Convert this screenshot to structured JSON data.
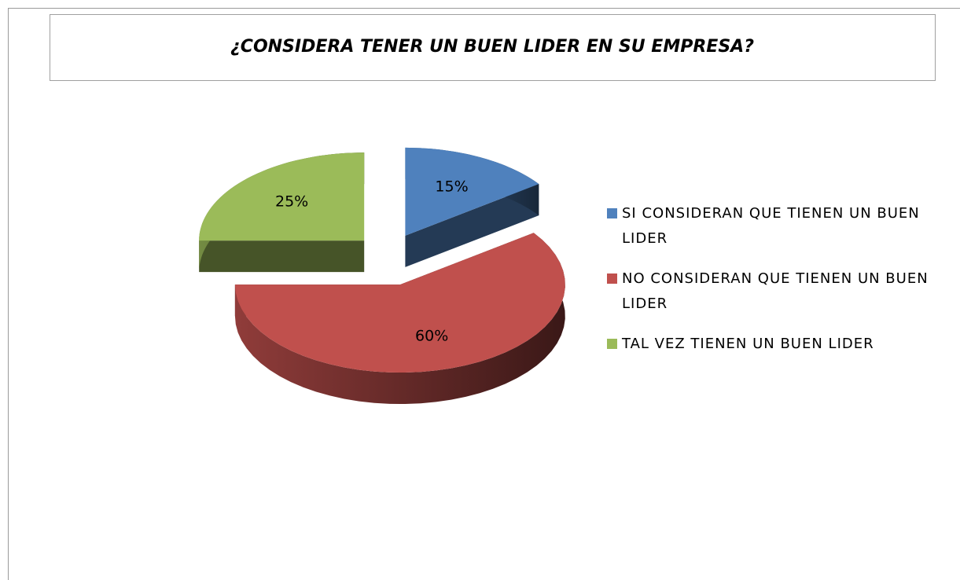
{
  "chart_data": {
    "type": "pie3d",
    "title": "¿CONSIDERA TENER UN BUEN LIDER EN SU EMPRESA?",
    "categories": [
      "SI CONSIDERAN QUE TIENEN UN BUEN LIDER",
      "NO CONSIDERAN QUE TIENEN UN BUEN LIDER",
      "TAL VEZ TIENEN UN BUEN LIDER"
    ],
    "values": [
      15,
      60,
      25
    ],
    "value_labels": [
      "15%",
      "60%",
      "25%"
    ],
    "colors": [
      "#4f81bd",
      "#c0504d",
      "#9bbb59"
    ],
    "legend": "right"
  }
}
